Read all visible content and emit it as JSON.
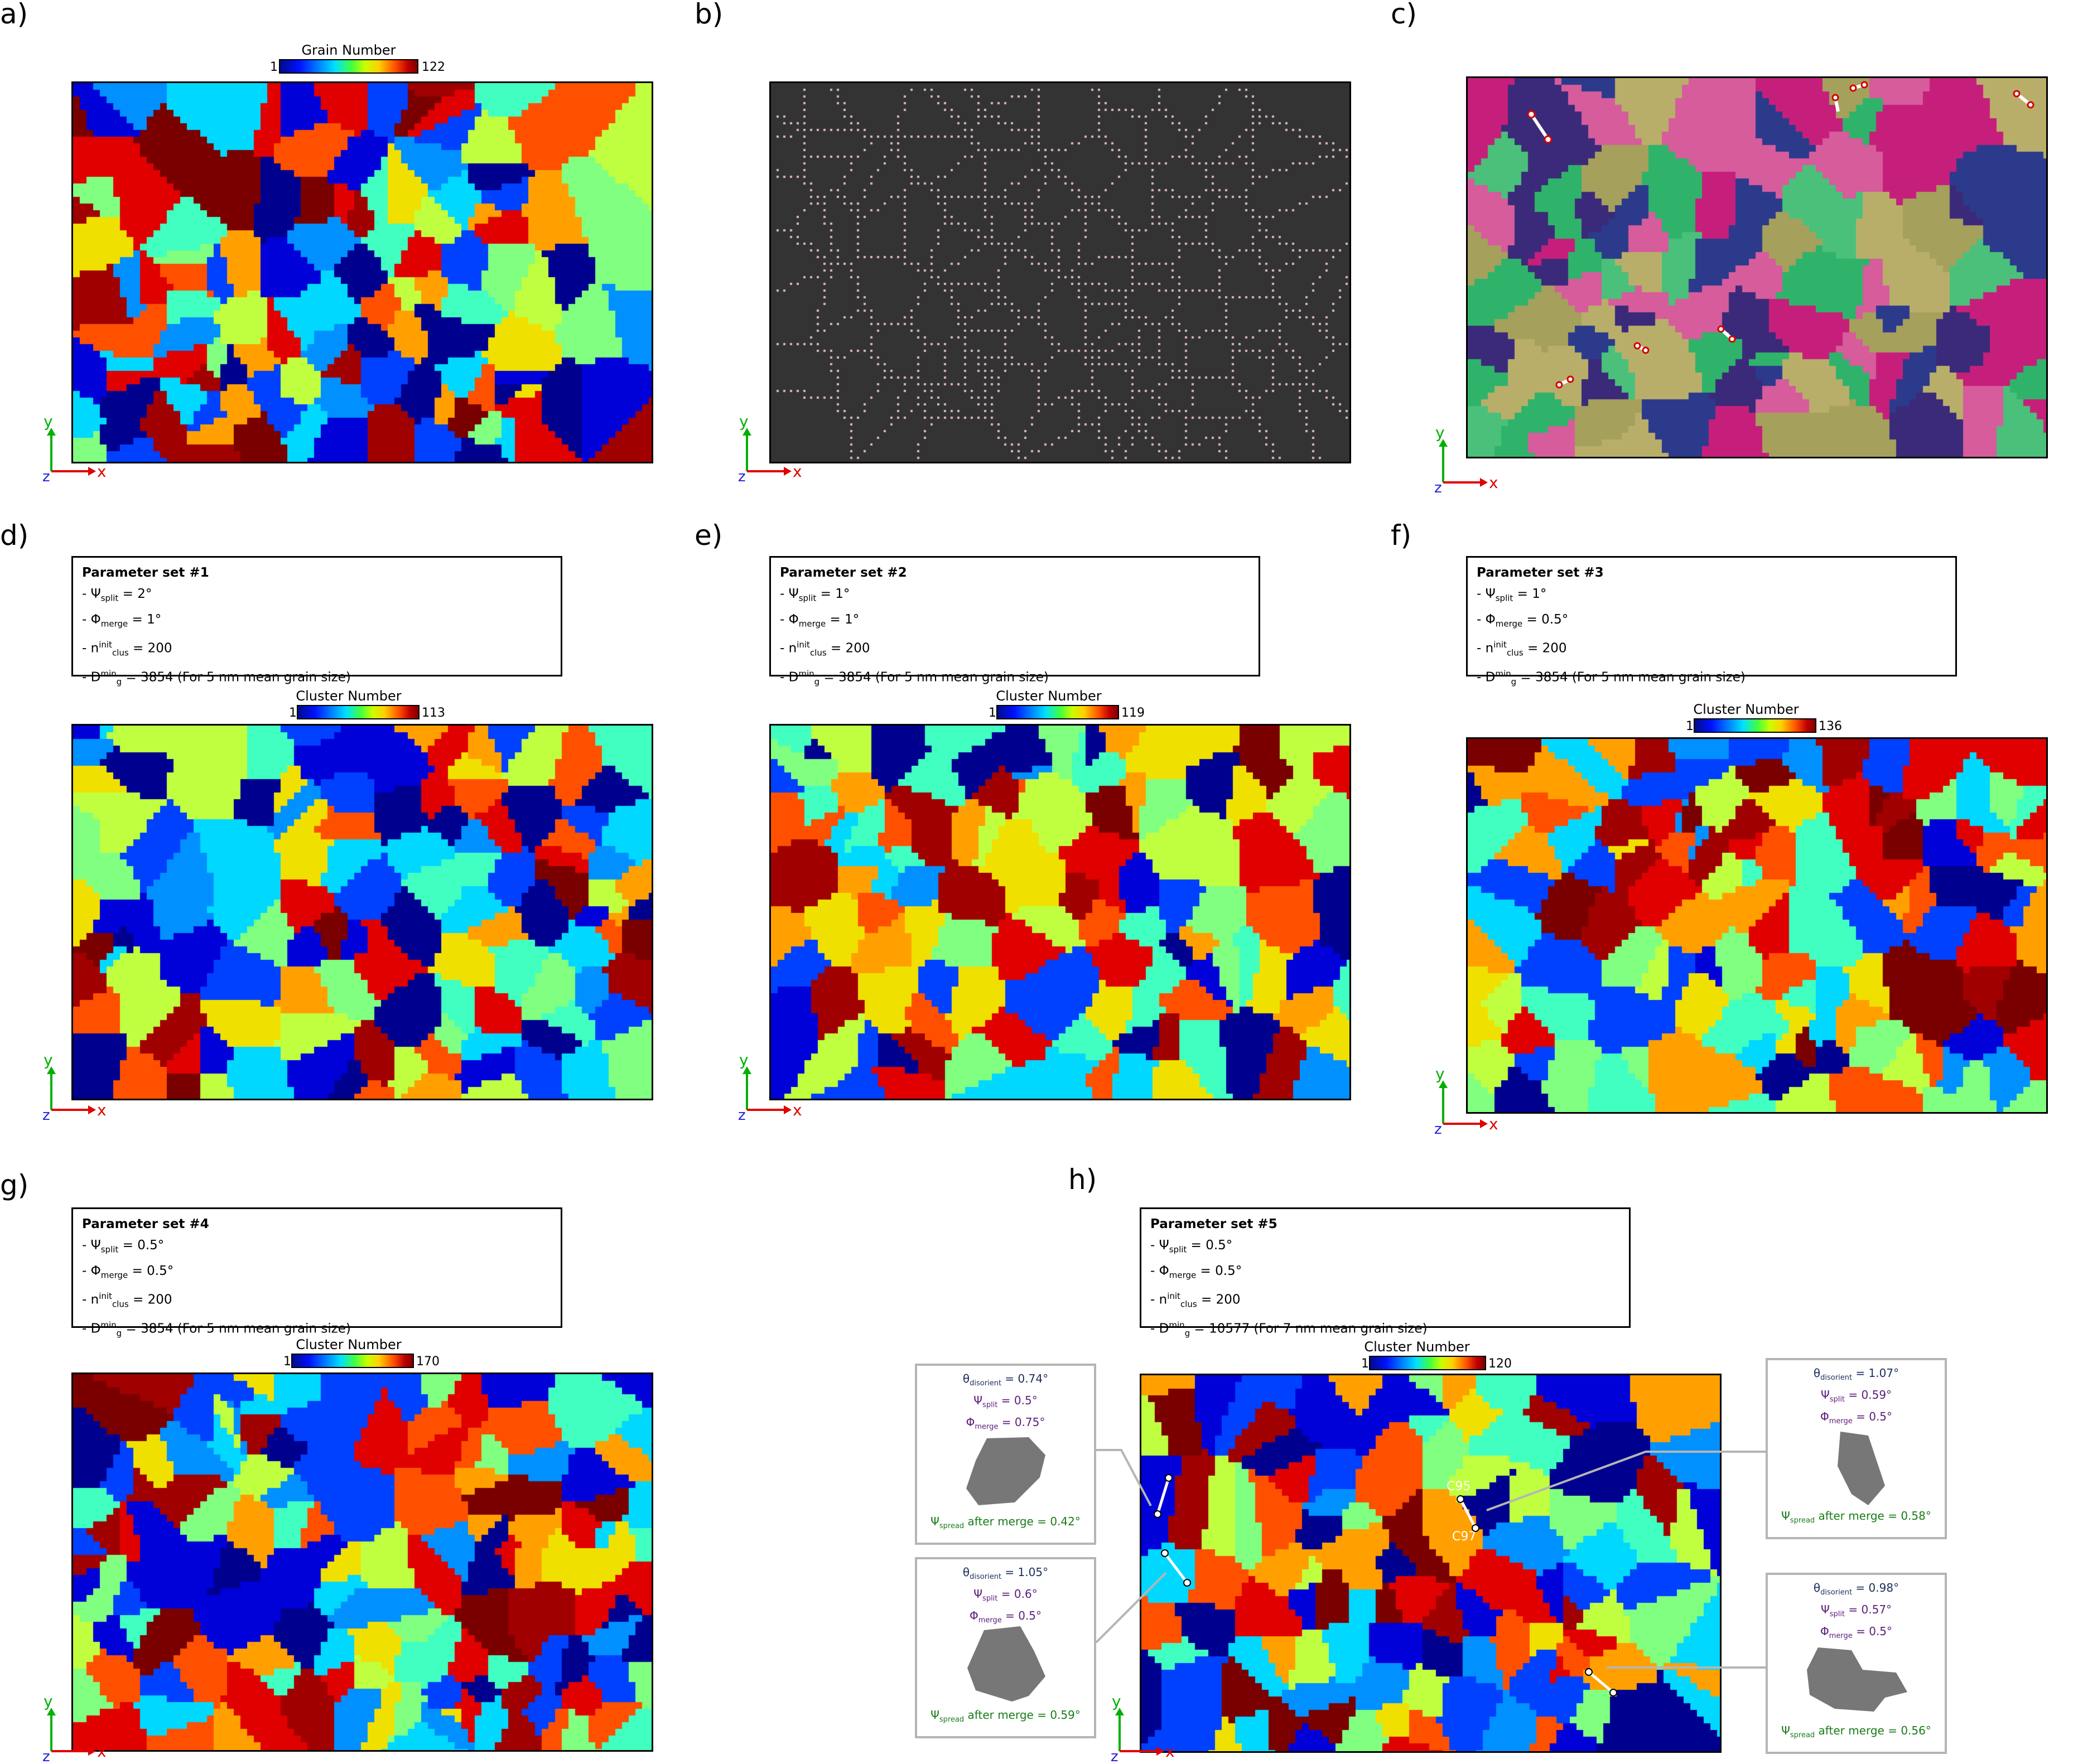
{
  "panels": {
    "a": {
      "letter": "a)",
      "cbar_title": "Grain Number",
      "cbar_min": "1",
      "cbar_max": "122"
    },
    "b": {
      "letter": "b)"
    },
    "c": {
      "letter": "c)"
    },
    "d": {
      "letter": "d)",
      "cbar_title": "Cluster Number",
      "cbar_min": "1",
      "cbar_max": "113",
      "params": {
        "title": "Parameter set #1",
        "psi": "= 2°",
        "phi": "= 1°",
        "nclus": "= 200",
        "dg": "= 3854 (For 5 nm mean grain size)"
      }
    },
    "e": {
      "letter": "e)",
      "cbar_title": "Cluster Number",
      "cbar_min": "1",
      "cbar_max": "119",
      "params": {
        "title": "Parameter set #2",
        "psi": "= 1°",
        "phi": "= 1°",
        "nclus": "= 200",
        "dg": "= 3854 (For 5 nm mean grain size)"
      }
    },
    "f": {
      "letter": "f)",
      "cbar_title": "Cluster Number",
      "cbar_min": "1",
      "cbar_max": "136",
      "params": {
        "title": "Parameter set #3",
        "psi": "= 1°",
        "phi": "= 0.5°",
        "nclus": "= 200",
        "dg": "= 3854 (For 5 nm mean grain size)"
      }
    },
    "g": {
      "letter": "g)",
      "cbar_title": "Cluster Number",
      "cbar_min": "1",
      "cbar_max": "170",
      "params": {
        "title": "Parameter set #4",
        "psi": "= 0.5°",
        "phi": "= 0.5°",
        "nclus": "= 200",
        "dg": "= 3854 (For 5 nm mean grain size)"
      }
    },
    "h": {
      "letter": "h)",
      "cbar_title": "Cluster Number",
      "cbar_min": "1",
      "cbar_max": "120",
      "params": {
        "title": "Parameter set #5",
        "psi": "= 0.5°",
        "phi": "= 0.5°",
        "nclus": "= 200",
        "dg": "= 10577 (For 7 nm mean grain size)"
      },
      "cluster_labels": {
        "upper": "C95",
        "lower": "C97"
      }
    }
  },
  "param_symbols": {
    "psi": "Ψ",
    "psi_sub": "split",
    "phi": "Φ",
    "phi_sub": "merge",
    "n": "n",
    "n_sub": "clus",
    "n_sup": "init",
    "d": "D",
    "d_sub": "g",
    "d_sup": "min",
    "dash": "- "
  },
  "axes": {
    "x": "x",
    "y": "y",
    "z": "z",
    "colors": {
      "x": "#e00000",
      "y": "#00b000",
      "z": "#2020e0"
    }
  },
  "annotations": [
    {
      "theta": "= 0.74°",
      "psi": "= 0.5°",
      "phi": "= 0.75°",
      "spread": "after merge = 0.42°"
    },
    {
      "theta": "= 1.05°",
      "psi": "= 0.6°",
      "phi": "= 0.5°",
      "spread": "after merge = 0.59°"
    },
    {
      "theta": "= 1.07°",
      "psi": "= 0.59°",
      "phi": "= 0.5°",
      "spread": "after merge = 0.58°"
    },
    {
      "theta": "= 0.98°",
      "psi": "= 0.57°",
      "phi": "= 0.5°",
      "spread": "after merge = 0.56°"
    }
  ],
  "ann_symbols": {
    "theta": "θ",
    "theta_sub": "disorient",
    "psi": "Ψ",
    "psi_sub": "split",
    "phi": "Φ",
    "phi_sub": "merge",
    "spread": "Ψ",
    "spread_sub": "spread"
  },
  "colors": {
    "grain_bg": "#333333",
    "boundary": "#d9b6bc",
    "annotation_border": "#b5b5b5",
    "grain_shape": "#777777"
  }
}
